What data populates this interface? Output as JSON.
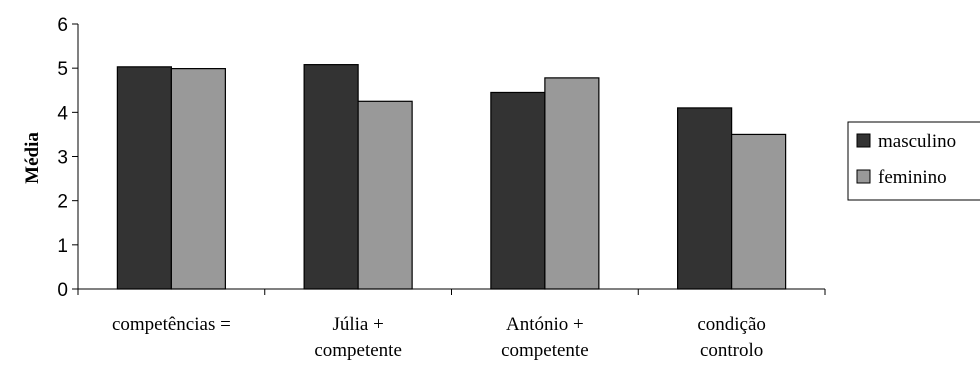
{
  "chart_data": {
    "type": "bar",
    "categories": [
      [
        "competências ="
      ],
      [
        "Júlia +",
        "competente"
      ],
      [
        "António +",
        "competente"
      ],
      [
        "condição",
        "controlo"
      ]
    ],
    "series": [
      {
        "name": "masculino",
        "color": "#333333",
        "values": [
          5.03,
          5.08,
          4.45,
          4.1
        ]
      },
      {
        "name": "feminino",
        "color": "#999999",
        "values": [
          4.99,
          4.25,
          4.78,
          3.5
        ]
      }
    ],
    "ylabel": "Média",
    "ylim": [
      0,
      6
    ],
    "yticks": [
      0,
      1,
      2,
      3,
      4,
      5,
      6
    ],
    "grid": false,
    "legend": "right"
  }
}
